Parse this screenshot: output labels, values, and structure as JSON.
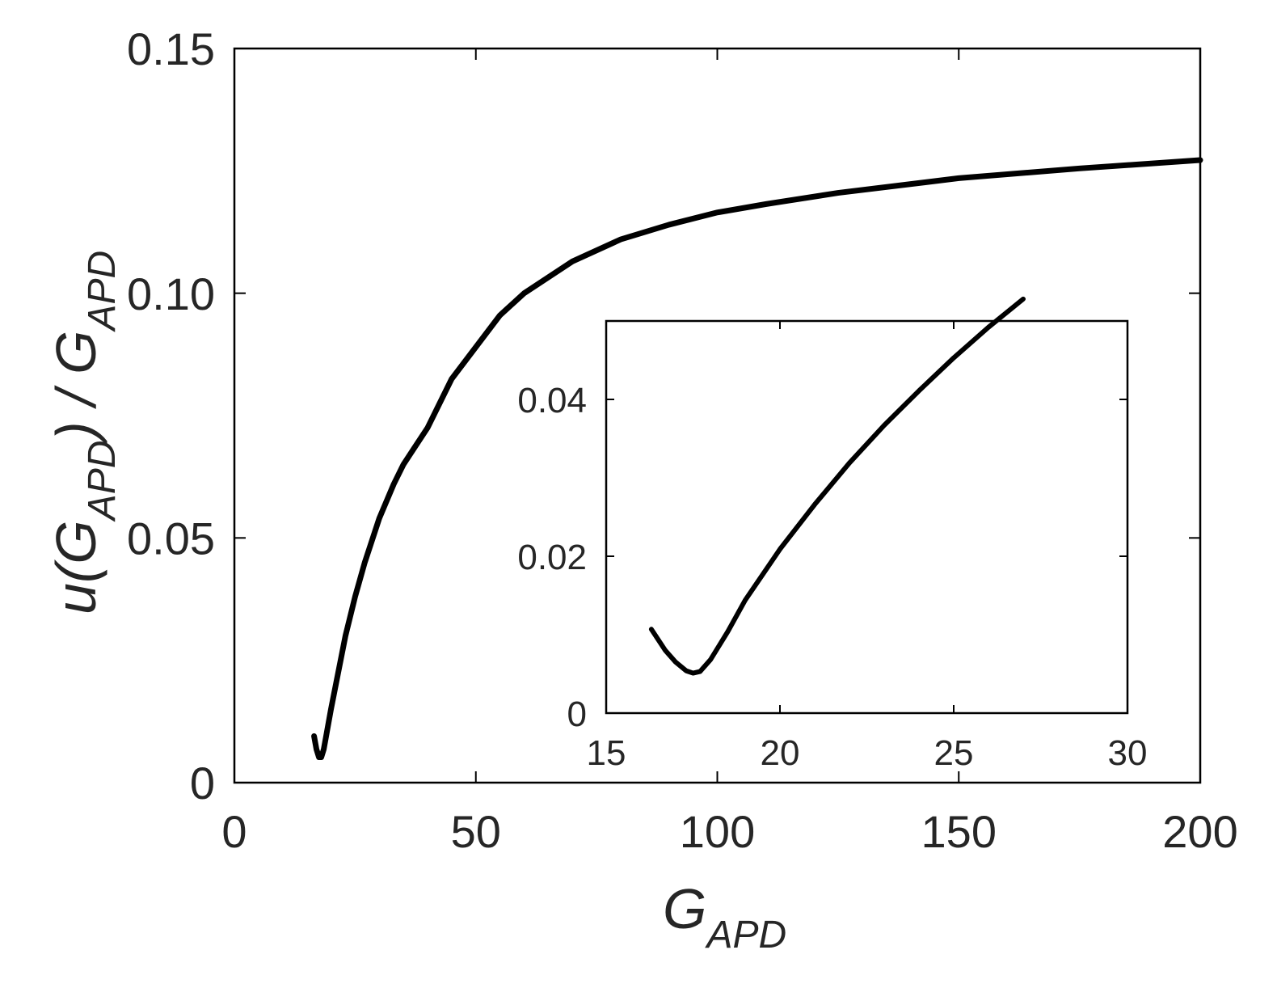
{
  "chart_data": [
    {
      "id": "main",
      "type": "line",
      "xlabel": {
        "base": "G",
        "sub": "APD"
      },
      "ylabel": {
        "func": "u(G",
        "func_sub": "APD",
        "mid": ") / G",
        "sub": "APD"
      },
      "xlim": [
        0,
        200
      ],
      "ylim": [
        0,
        0.15
      ],
      "x_ticks": [
        0,
        50,
        100,
        150,
        200
      ],
      "x_tick_labels": [
        "0",
        "50",
        "100",
        "150",
        "200"
      ],
      "y_ticks": [
        0,
        0.05,
        0.1,
        0.15
      ],
      "y_tick_labels": [
        "0",
        "0.05",
        "0.10",
        "0.15"
      ],
      "grid": false,
      "series": [
        {
          "x": [
            16.5,
            17.0,
            17.5,
            18.0,
            18.5,
            19.0,
            20,
            21,
            22,
            23,
            24,
            25,
            27,
            30,
            33,
            35,
            40,
            45,
            50,
            55,
            60,
            70,
            80,
            90,
            100,
            110,
            125,
            150,
            175,
            200
          ],
          "y": [
            0.0095,
            0.0068,
            0.0052,
            0.0052,
            0.0068,
            0.0095,
            0.015,
            0.02,
            0.025,
            0.03,
            0.034,
            0.038,
            0.045,
            0.054,
            0.061,
            0.065,
            0.0725,
            0.0825,
            0.089,
            0.0955,
            0.1,
            0.1065,
            0.111,
            0.114,
            0.1165,
            0.1182,
            0.1205,
            0.1235,
            0.1255,
            0.1272
          ]
        }
      ]
    },
    {
      "id": "inset",
      "type": "line",
      "xlim": [
        15,
        30
      ],
      "ylim": [
        0,
        0.05
      ],
      "x_ticks": [
        15,
        20,
        25,
        30
      ],
      "x_tick_labels": [
        "15",
        "20",
        "25",
        "30"
      ],
      "y_ticks": [
        0,
        0.02,
        0.04
      ],
      "y_tick_labels": [
        "0",
        "0.02",
        "0.04"
      ],
      "grid": false,
      "series": [
        {
          "x": [
            16.3,
            16.7,
            17.0,
            17.3,
            17.5,
            17.7,
            18.0,
            18.5,
            19.0,
            20.0,
            21.0,
            22.0,
            23.0,
            24.0,
            25.0,
            26.0,
            27.0
          ],
          "y": [
            0.0107,
            0.008,
            0.0065,
            0.0054,
            0.0051,
            0.0053,
            0.0068,
            0.0104,
            0.0144,
            0.0209,
            0.0266,
            0.0319,
            0.0367,
            0.0411,
            0.0453,
            0.0492,
            0.0528
          ]
        }
      ]
    }
  ]
}
